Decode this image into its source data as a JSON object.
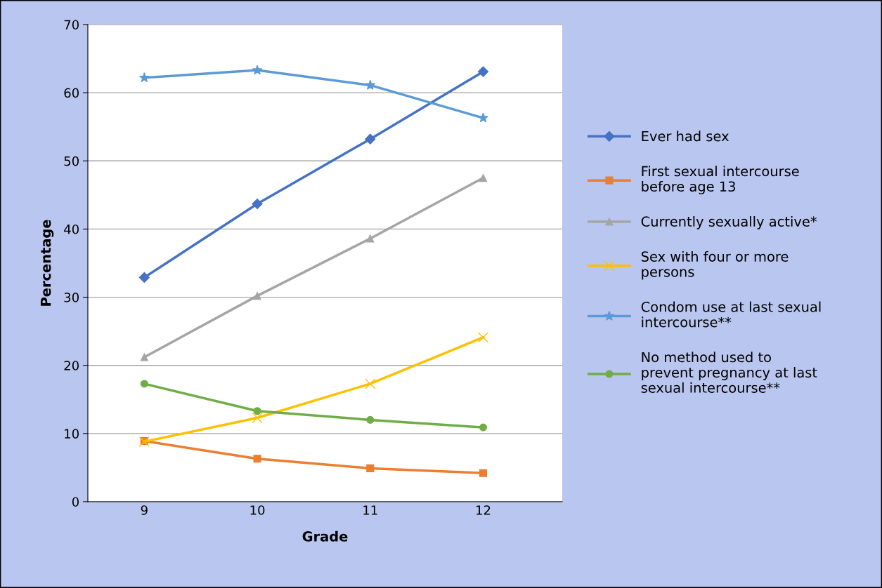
{
  "chart_data": {
    "type": "line",
    "xlabel": "Grade",
    "ylabel": "Percentage",
    "categories": [
      "9",
      "10",
      "11",
      "12"
    ],
    "ylim": [
      0,
      70
    ],
    "yticks": [
      0,
      10,
      20,
      30,
      40,
      50,
      60,
      70
    ],
    "grid": "y",
    "legend": "right",
    "series": [
      {
        "name": "Ever had sex",
        "color": "#4472c4",
        "marker": "diamond",
        "values": [
          32.9,
          43.7,
          53.2,
          63.1
        ]
      },
      {
        "name": "First sexual intercourse\nbefore age 13",
        "color": "#ed7d31",
        "marker": "square",
        "values": [
          8.9,
          6.3,
          4.9,
          4.2
        ]
      },
      {
        "name": "Currently sexually active*",
        "color": "#a5a5a5",
        "marker": "triangle",
        "values": [
          21.2,
          30.2,
          38.6,
          47.5
        ]
      },
      {
        "name": "Sex with four or more\npersons",
        "color": "#ffc000",
        "marker": "cross",
        "values": [
          8.8,
          12.3,
          17.3,
          24.1
        ]
      },
      {
        "name": "Condom use at last sexual\nintercourse**",
        "color": "#5b9bd5",
        "marker": "star",
        "values": [
          62.2,
          63.3,
          61.1,
          56.3
        ]
      },
      {
        "name": "No method used to\nprevent pregnancy at last\nsexual intercourse**",
        "color": "#70ad47",
        "marker": "circle",
        "values": [
          17.3,
          13.3,
          12.0,
          10.9
        ]
      }
    ]
  }
}
